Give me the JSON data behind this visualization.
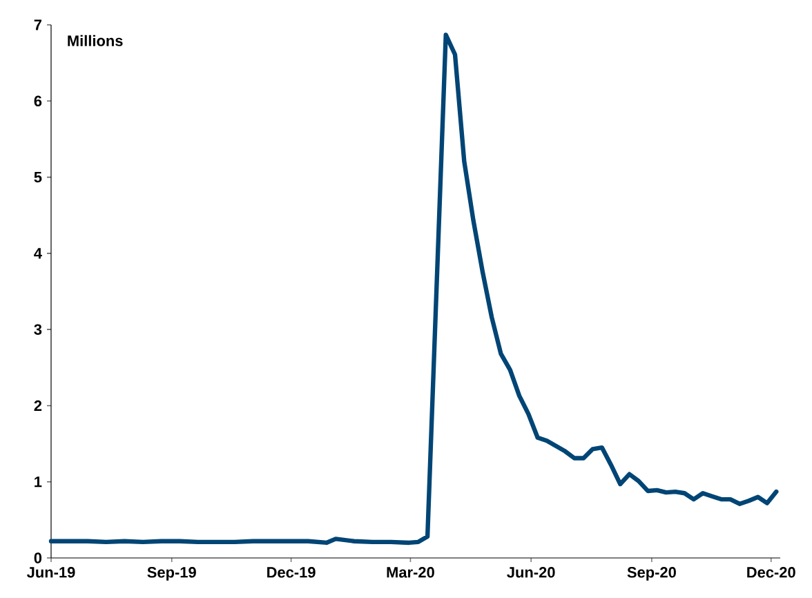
{
  "chart_data": {
    "type": "line",
    "ylabel": "Millions",
    "x": [
      "2019-06-01",
      "2019-06-15",
      "2019-06-29",
      "2019-07-13",
      "2019-07-27",
      "2019-08-10",
      "2019-08-24",
      "2019-09-07",
      "2019-09-21",
      "2019-10-05",
      "2019-10-19",
      "2019-11-02",
      "2019-11-16",
      "2019-11-30",
      "2019-12-14",
      "2019-12-28",
      "2020-01-04",
      "2020-01-18",
      "2020-02-01",
      "2020-02-15",
      "2020-02-29",
      "2020-03-07",
      "2020-03-14",
      "2020-03-28",
      "2020-04-04",
      "2020-04-11",
      "2020-04-18",
      "2020-04-25",
      "2020-05-02",
      "2020-05-09",
      "2020-05-16",
      "2020-05-23",
      "2020-05-30",
      "2020-06-06",
      "2020-06-13",
      "2020-06-20",
      "2020-06-27",
      "2020-07-04",
      "2020-07-11",
      "2020-07-18",
      "2020-07-25",
      "2020-08-01",
      "2020-08-08",
      "2020-08-15",
      "2020-08-22",
      "2020-08-29",
      "2020-09-05",
      "2020-09-12",
      "2020-09-19",
      "2020-09-26",
      "2020-10-03",
      "2020-10-10",
      "2020-10-17",
      "2020-10-24",
      "2020-10-31",
      "2020-11-07",
      "2020-11-14",
      "2020-11-21",
      "2020-11-28",
      "2020-12-05"
    ],
    "series": [
      {
        "color": "#004575",
        "values": [
          0.22,
          0.22,
          0.22,
          0.21,
          0.22,
          0.21,
          0.22,
          0.22,
          0.21,
          0.21,
          0.21,
          0.22,
          0.22,
          0.22,
          0.22,
          0.2,
          0.25,
          0.22,
          0.21,
          0.21,
          0.2,
          0.21,
          0.28,
          6.87,
          6.61,
          5.21,
          4.43,
          3.76,
          3.16,
          2.68,
          2.47,
          2.13,
          1.89,
          1.58,
          1.54,
          1.47,
          1.4,
          1.31,
          1.31,
          1.43,
          1.45,
          1.22,
          0.97,
          1.1,
          1.01,
          0.88,
          0.89,
          0.86,
          0.87,
          0.85,
          0.77,
          0.85,
          0.81,
          0.77,
          0.77,
          0.71,
          0.75,
          0.8,
          0.72,
          0.87
        ]
      }
    ],
    "xlim": [
      "2019-06-01",
      "2020-12-08"
    ],
    "xticks": [
      {
        "value": "2019-06-01",
        "label": "Jun-19"
      },
      {
        "value": "2019-09-01",
        "label": "Sep-19"
      },
      {
        "value": "2019-12-01",
        "label": "Dec-19"
      },
      {
        "value": "2020-03-01",
        "label": "Mar-20"
      },
      {
        "value": "2020-06-01",
        "label": "Jun-20"
      },
      {
        "value": "2020-09-01",
        "label": "Sep-20"
      },
      {
        "value": "2020-12-01",
        "label": "Dec-20"
      }
    ],
    "ylim": [
      0,
      7
    ],
    "yticks": [
      0,
      1,
      2,
      3,
      4,
      5,
      6,
      7
    ],
    "grid": false,
    "marker": "none",
    "line_style": "solid"
  }
}
